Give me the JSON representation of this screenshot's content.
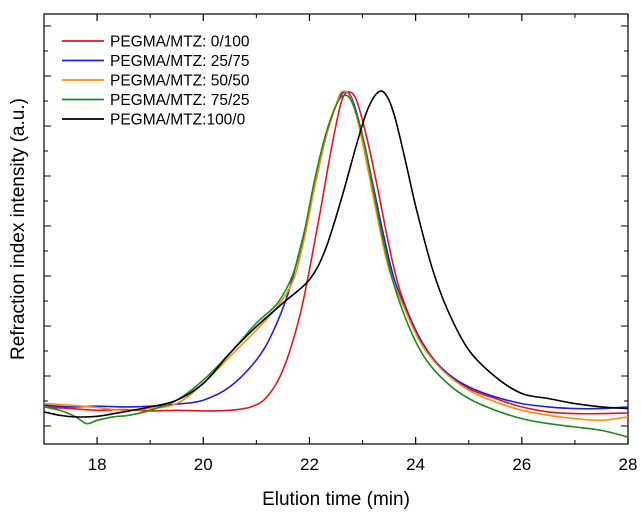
{
  "chart_data": {
    "type": "line",
    "title": "",
    "xlabel": "Elution time (min)",
    "ylabel": "Refraction index intensity (a.u.)",
    "xlim": [
      17,
      28
    ],
    "ylim": [
      0,
      1.0
    ],
    "xticks": [
      18,
      20,
      22,
      24,
      26,
      28
    ],
    "xtick_labels": [
      "18",
      "20",
      "22",
      "24",
      "26",
      "28"
    ],
    "y_tick_labels_shown": false,
    "grid": false,
    "legend_position": "top-left",
    "series": [
      {
        "name": "PEGMA/MTZ: 0/100",
        "color": "#e8141c",
        "points": [
          [
            17.0,
            0.06
          ],
          [
            17.5,
            0.055
          ],
          [
            18.0,
            0.05
          ],
          [
            18.5,
            0.052
          ],
          [
            19.0,
            0.048
          ],
          [
            19.5,
            0.05
          ],
          [
            20.0,
            0.048
          ],
          [
            20.5,
            0.05
          ],
          [
            20.9,
            0.06
          ],
          [
            21.2,
            0.09
          ],
          [
            21.5,
            0.17
          ],
          [
            21.8,
            0.32
          ],
          [
            22.0,
            0.47
          ],
          [
            22.2,
            0.64
          ],
          [
            22.4,
            0.82
          ],
          [
            22.6,
            0.97
          ],
          [
            22.75,
            1.0
          ],
          [
            22.9,
            0.97
          ],
          [
            23.1,
            0.85
          ],
          [
            23.3,
            0.7
          ],
          [
            23.5,
            0.54
          ],
          [
            23.7,
            0.41
          ],
          [
            24.0,
            0.29
          ],
          [
            24.3,
            0.21
          ],
          [
            24.6,
            0.16
          ],
          [
            25.0,
            0.115
          ],
          [
            25.5,
            0.085
          ],
          [
            26.0,
            0.06
          ],
          [
            26.5,
            0.045
          ],
          [
            27.0,
            0.04
          ],
          [
            27.5,
            0.04
          ],
          [
            28.0,
            0.042
          ]
        ]
      },
      {
        "name": "PEGMA/MTZ: 25/75",
        "color": "#1f1fe0",
        "points": [
          [
            17.0,
            0.065
          ],
          [
            17.5,
            0.06
          ],
          [
            18.0,
            0.062
          ],
          [
            18.5,
            0.06
          ],
          [
            19.0,
            0.062
          ],
          [
            19.5,
            0.068
          ],
          [
            20.0,
            0.08
          ],
          [
            20.5,
            0.12
          ],
          [
            21.0,
            0.2
          ],
          [
            21.3,
            0.28
          ],
          [
            21.6,
            0.4
          ],
          [
            21.9,
            0.58
          ],
          [
            22.1,
            0.72
          ],
          [
            22.3,
            0.86
          ],
          [
            22.5,
            0.96
          ],
          [
            22.65,
            1.0
          ],
          [
            22.8,
            0.98
          ],
          [
            23.0,
            0.87
          ],
          [
            23.2,
            0.72
          ],
          [
            23.4,
            0.57
          ],
          [
            23.6,
            0.44
          ],
          [
            23.9,
            0.32
          ],
          [
            24.2,
            0.23
          ],
          [
            24.6,
            0.16
          ],
          [
            25.0,
            0.12
          ],
          [
            25.5,
            0.09
          ],
          [
            26.0,
            0.07
          ],
          [
            26.5,
            0.06
          ],
          [
            27.0,
            0.055
          ],
          [
            27.5,
            0.055
          ],
          [
            28.0,
            0.06
          ]
        ]
      },
      {
        "name": "PEGMA/MTZ: 50/50",
        "color": "#ff8c0a",
        "points": [
          [
            17.0,
            0.07
          ],
          [
            17.5,
            0.065
          ],
          [
            18.0,
            0.058
          ],
          [
            18.5,
            0.05
          ],
          [
            19.0,
            0.055
          ],
          [
            19.5,
            0.07
          ],
          [
            20.0,
            0.13
          ],
          [
            20.5,
            0.21
          ],
          [
            21.0,
            0.29
          ],
          [
            21.4,
            0.36
          ],
          [
            21.7,
            0.44
          ],
          [
            21.9,
            0.56
          ],
          [
            22.1,
            0.72
          ],
          [
            22.3,
            0.86
          ],
          [
            22.5,
            0.96
          ],
          [
            22.6,
            1.0
          ],
          [
            22.75,
            0.99
          ],
          [
            22.9,
            0.92
          ],
          [
            23.1,
            0.77
          ],
          [
            23.3,
            0.61
          ],
          [
            23.5,
            0.47
          ],
          [
            23.8,
            0.35
          ],
          [
            24.1,
            0.25
          ],
          [
            24.5,
            0.17
          ],
          [
            25.0,
            0.11
          ],
          [
            25.5,
            0.075
          ],
          [
            26.0,
            0.05
          ],
          [
            26.5,
            0.035
          ],
          [
            27.0,
            0.025
          ],
          [
            27.5,
            0.02
          ],
          [
            28.0,
            0.03
          ]
        ]
      },
      {
        "name": "PEGMA/MTZ: 75/25",
        "color": "#1e8a1e",
        "points": [
          [
            17.0,
            0.06
          ],
          [
            17.3,
            0.05
          ],
          [
            17.6,
            0.03
          ],
          [
            17.8,
            0.01
          ],
          [
            18.0,
            0.02
          ],
          [
            18.3,
            0.03
          ],
          [
            18.6,
            0.035
          ],
          [
            19.0,
            0.05
          ],
          [
            19.5,
            0.08
          ],
          [
            20.0,
            0.14
          ],
          [
            20.5,
            0.22
          ],
          [
            21.0,
            0.31
          ],
          [
            21.4,
            0.37
          ],
          [
            21.7,
            0.46
          ],
          [
            21.9,
            0.58
          ],
          [
            22.1,
            0.74
          ],
          [
            22.3,
            0.87
          ],
          [
            22.5,
            0.96
          ],
          [
            22.65,
            0.99
          ],
          [
            22.8,
            0.97
          ],
          [
            23.0,
            0.87
          ],
          [
            23.2,
            0.71
          ],
          [
            23.4,
            0.55
          ],
          [
            23.6,
            0.42
          ],
          [
            23.9,
            0.29
          ],
          [
            24.2,
            0.2
          ],
          [
            24.6,
            0.13
          ],
          [
            25.0,
            0.085
          ],
          [
            25.5,
            0.05
          ],
          [
            26.0,
            0.025
          ],
          [
            26.5,
            0.01
          ],
          [
            27.0,
            0.0
          ],
          [
            27.5,
            -0.01
          ],
          [
            28.0,
            -0.03
          ]
        ]
      },
      {
        "name": "PEGMA/MTZ:100/0",
        "color": "#000000",
        "points": [
          [
            17.0,
            0.045
          ],
          [
            17.3,
            0.035
          ],
          [
            17.6,
            0.03
          ],
          [
            18.0,
            0.032
          ],
          [
            18.5,
            0.045
          ],
          [
            19.0,
            0.06
          ],
          [
            19.5,
            0.08
          ],
          [
            20.0,
            0.13
          ],
          [
            20.5,
            0.22
          ],
          [
            21.0,
            0.3
          ],
          [
            21.5,
            0.37
          ],
          [
            22.0,
            0.44
          ],
          [
            22.3,
            0.53
          ],
          [
            22.6,
            0.68
          ],
          [
            22.9,
            0.85
          ],
          [
            23.1,
            0.95
          ],
          [
            23.3,
            1.0
          ],
          [
            23.45,
            0.99
          ],
          [
            23.6,
            0.93
          ],
          [
            23.8,
            0.8
          ],
          [
            24.0,
            0.66
          ],
          [
            24.3,
            0.48
          ],
          [
            24.6,
            0.35
          ],
          [
            25.0,
            0.23
          ],
          [
            25.5,
            0.15
          ],
          [
            26.0,
            0.1
          ],
          [
            26.5,
            0.085
          ],
          [
            27.0,
            0.07
          ],
          [
            27.5,
            0.06
          ],
          [
            28.0,
            0.055
          ]
        ]
      }
    ]
  }
}
